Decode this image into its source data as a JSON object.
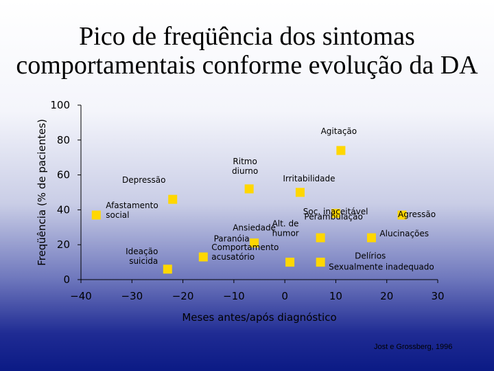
{
  "title": "Pico de freqüência dos sintomas comportamentais conforme evolução da DA",
  "source": "Jost e Grossberg, 1996",
  "colors": {
    "marker": "#ffd700",
    "axis": "#000000"
  },
  "chart_data": {
    "type": "scatter",
    "title": "Pico de freqüência dos sintomas comportamentais conforme evolução da DA",
    "xlabel": "Meses antes/após diagnóstico",
    "ylabel": "Freqüência (% de pacientes)",
    "xlim": [
      -40,
      30
    ],
    "ylim": [
      0,
      100
    ],
    "x_ticks": [
      -40,
      -30,
      -20,
      -10,
      0,
      10,
      20,
      30
    ],
    "x_tick_labels": [
      "−40",
      "−30",
      "−20",
      "−10",
      "0",
      "10",
      "20",
      "30"
    ],
    "y_ticks": [
      0,
      20,
      40,
      60,
      80,
      100
    ],
    "y_tick_labels": [
      "0",
      "20",
      "40",
      "60",
      "80",
      "100"
    ],
    "points": [
      {
        "lines": [
          "Afastamento",
          "social"
        ],
        "x": -37,
        "y": 37
      },
      {
        "lines": [
          "Depressão"
        ],
        "x": -22,
        "y": 46
      },
      {
        "lines": [
          "Ideação",
          "suicida"
        ],
        "x": -23,
        "y": 6
      },
      {
        "lines": [
          "Paranóia"
        ],
        "x": -6,
        "y": 21
      },
      {
        "lines": [
          "Ansiedade"
        ],
        "x": -6,
        "y": 21
      },
      {
        "lines": [
          "Comportamento",
          "acusatório"
        ],
        "x": -16,
        "y": 13
      },
      {
        "lines": [
          "Ritmo",
          "diurno"
        ],
        "x": -7,
        "y": 52
      },
      {
        "lines": [
          "Irritabilidade"
        ],
        "x": 3,
        "y": 50
      },
      {
        "lines": [
          "Alt. de",
          "humor"
        ],
        "x": 1,
        "y": 10
      },
      {
        "lines": [
          "Soc. inaceitável"
        ],
        "x": 7,
        "y": 24
      },
      {
        "lines": [
          "Agitação"
        ],
        "x": 11,
        "y": 74
      },
      {
        "lines": [
          "Perambulação"
        ],
        "x": 10,
        "y": 38
      },
      {
        "lines": [
          "Delírios"
        ],
        "x": 7,
        "y": 10
      },
      {
        "lines": [
          "Sexualmente inadequado"
        ],
        "x": 7,
        "y": 10
      },
      {
        "lines": [
          "Agressão"
        ],
        "x": 23,
        "y": 37
      },
      {
        "lines": [
          "Alucinações"
        ],
        "x": 17,
        "y": 24
      }
    ]
  }
}
